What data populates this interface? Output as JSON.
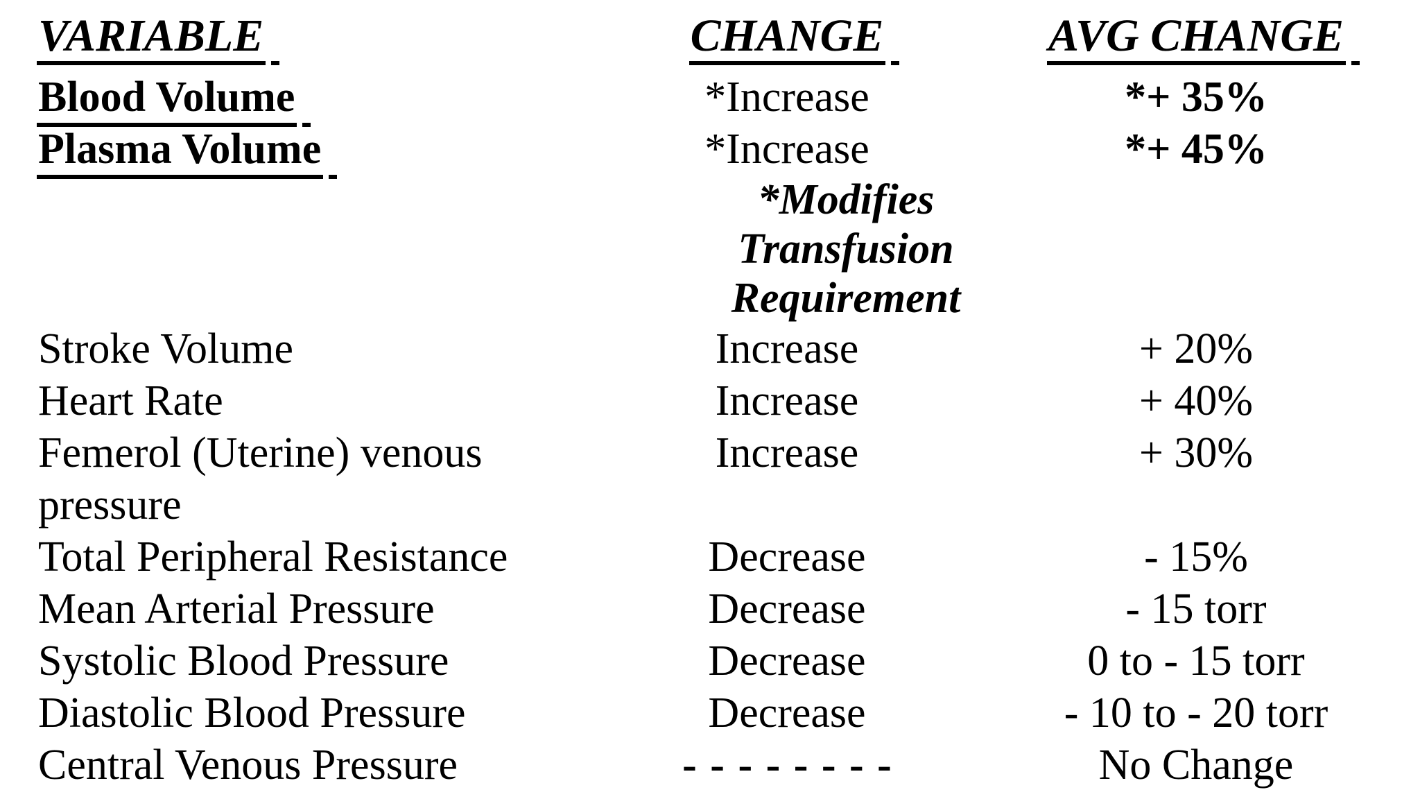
{
  "colors": {
    "text": "#000000",
    "background": "#ffffff"
  },
  "table": {
    "headers": {
      "variable": "VARIABLE",
      "change": "CHANGE",
      "avg_change": "AVG CHANGE"
    },
    "note": "*Modifies Transfusion Requirement",
    "rows": [
      {
        "variable": "Blood Volume",
        "change": "*Increase",
        "avg_change": "*+ 35%"
      },
      {
        "variable": "Plasma Volume",
        "change": "*Increase",
        "avg_change": "*+ 45%"
      },
      {
        "variable": "Stroke Volume",
        "change": "Increase",
        "avg_change": "+ 20%"
      },
      {
        "variable": "Heart Rate",
        "change": "Increase",
        "avg_change": "+ 40%"
      },
      {
        "variable": "Femerol (Uterine) venous pressure",
        "change": "Increase",
        "avg_change": "+ 30%"
      },
      {
        "variable": "Total Peripheral Resistance",
        "change": "Decrease",
        "avg_change": "- 15%"
      },
      {
        "variable": "Mean Arterial Pressure",
        "change": "Decrease",
        "avg_change": "- 15 torr"
      },
      {
        "variable": "Systolic Blood Pressure",
        "change": "Decrease",
        "avg_change": "0 to - 15 torr"
      },
      {
        "variable": "Diastolic Blood Pressure",
        "change": "Decrease",
        "avg_change": "- 10 to - 20 torr"
      },
      {
        "variable": "Central Venous Pressure",
        "change": "- - - - - - - -",
        "avg_change": "No Change"
      }
    ]
  }
}
